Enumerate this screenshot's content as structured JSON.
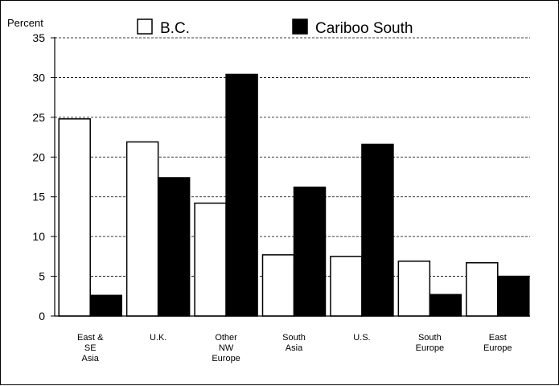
{
  "chart_data": {
    "type": "bar",
    "ylabel": "Percent",
    "ylim": [
      0,
      35
    ],
    "yticks": [
      0,
      5,
      10,
      15,
      20,
      25,
      30,
      35
    ],
    "grid": true,
    "legend_position": "top",
    "categories": [
      [
        "East &",
        "SE",
        "Asia"
      ],
      [
        "U.K."
      ],
      [
        "Other",
        "NW",
        "Europe"
      ],
      [
        "South",
        "Asia"
      ],
      [
        "U.S."
      ],
      [
        "South",
        "Europe"
      ],
      [
        "East",
        "Europe"
      ]
    ],
    "series": [
      {
        "name": "B.C.",
        "color": "#ffffff",
        "values": [
          24.8,
          21.9,
          14.2,
          7.7,
          7.5,
          6.9,
          6.7
        ]
      },
      {
        "name": "Cariboo South",
        "color": "#000000",
        "values": [
          2.6,
          17.4,
          30.4,
          16.2,
          21.6,
          2.7,
          5.0
        ]
      }
    ]
  }
}
